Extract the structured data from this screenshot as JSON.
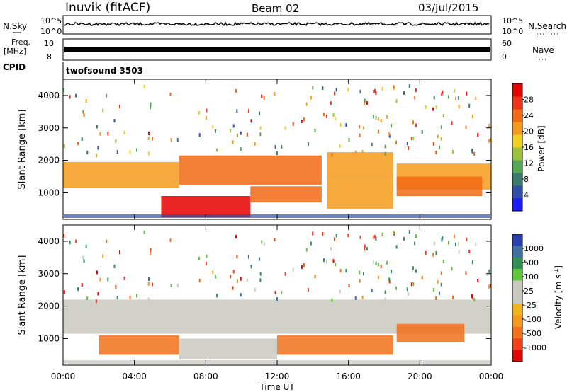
{
  "header": {
    "station": "Inuvik (fitACF)",
    "beam": "Beam 02",
    "date": "03/Jul/2015"
  },
  "aux_panels": {
    "nsky_label": "N.Sky",
    "nsky_ticks": [
      "10^5",
      "10^0"
    ],
    "nsearch_label": "N.Search",
    "nsearch_ticks": [
      "10^5",
      "10^0"
    ],
    "freq_label": "Freq.",
    "freq_unit": "[MHz]",
    "freq_ticks": [
      "10",
      "8"
    ],
    "nave_label": "Nave",
    "nave_ticks": [
      "60",
      "0"
    ],
    "cpid_label": "CPID",
    "cpid_value": "twofsound 3503"
  },
  "chart_data": [
    {
      "type": "heatmap",
      "title": "",
      "xlabel": "Time UT",
      "ylabel": "Slant Range [km]",
      "x_ticks": [
        "00:00",
        "04:00",
        "08:00",
        "12:00",
        "16:00",
        "20:00",
        "00:00"
      ],
      "y_ticks": [
        "1000",
        "2000",
        "3000",
        "4000"
      ],
      "xlim_hours": [
        0,
        24
      ],
      "ylim_km": [
        180,
        4500
      ],
      "colorbar": {
        "label": "Power [dB]",
        "range": [
          0,
          32
        ],
        "ticks": [
          "4",
          "8",
          "12",
          "16",
          "20",
          "24",
          "28"
        ],
        "colors": [
          "#1a1aff",
          "#2f4fa8",
          "#3a7a6a",
          "#54a855",
          "#9cc33c",
          "#f0d020",
          "#f59a1a",
          "#f26a14",
          "#ee3318",
          "#e60000"
        ]
      },
      "echo_bands": [
        {
          "start_h": 0.0,
          "end_h": 6.5,
          "range_km": [
            1150,
            1950
          ],
          "power_db": 22
        },
        {
          "start_h": 6.5,
          "end_h": 14.5,
          "range_km": [
            1250,
            2150
          ],
          "power_db": 24
        },
        {
          "start_h": 14.8,
          "end_h": 18.5,
          "range_km": [
            1400,
            2250
          ],
          "power_db": 21
        },
        {
          "start_h": 18.7,
          "end_h": 24.0,
          "range_km": [
            1100,
            1900
          ],
          "power_db": 22
        },
        {
          "start_h": 5.5,
          "end_h": 10.5,
          "range_km": [
            250,
            900
          ],
          "power_db": 30
        },
        {
          "start_h": 10.5,
          "end_h": 14.5,
          "range_km": [
            700,
            1200
          ],
          "power_db": 24
        },
        {
          "start_h": 14.8,
          "end_h": 18.5,
          "range_km": [
            500,
            1400
          ],
          "power_db": 22
        },
        {
          "start_h": 18.7,
          "end_h": 23.5,
          "range_km": [
            900,
            1500
          ],
          "power_db": 24
        }
      ]
    },
    {
      "type": "heatmap",
      "title": "",
      "xlabel": "Time UT",
      "ylabel": "Slant Range [km]",
      "x_ticks": [
        "00:00",
        "04:00",
        "08:00",
        "12:00",
        "16:00",
        "20:00",
        "00:00"
      ],
      "y_ticks": [
        "1000",
        "2000",
        "3000",
        "4000"
      ],
      "xlim_hours": [
        0,
        24
      ],
      "ylim_km": [
        180,
        4500
      ],
      "colorbar": {
        "label": "Velocity [m s^-1]",
        "ticks": [
          "1000",
          "500",
          "100",
          "25",
          "-25",
          "-100",
          "-500",
          "-1000"
        ],
        "colors": [
          "#2a3fae",
          "#3f6fa0",
          "#2f8f55",
          "#5cc83a",
          "#c9c9c0",
          "#c9c9c0",
          "#f2b51c",
          "#f59a1a",
          "#f2701a",
          "#ef4018",
          "#e60000"
        ]
      },
      "echo_bands": [
        {
          "start_h": 0.0,
          "end_h": 24.0,
          "range_km": [
            1150,
            2200
          ],
          "velocity_ms": 0
        },
        {
          "start_h": 2.0,
          "end_h": 6.5,
          "range_km": [
            500,
            1100
          ],
          "velocity_ms": -150
        },
        {
          "start_h": 6.5,
          "end_h": 12.0,
          "range_km": [
            350,
            1000
          ],
          "velocity_ms": 80
        },
        {
          "start_h": 12.0,
          "end_h": 18.5,
          "range_km": [
            500,
            1100
          ],
          "velocity_ms": -150
        },
        {
          "start_h": 18.7,
          "end_h": 22.5,
          "range_km": [
            900,
            1450
          ],
          "velocity_ms": -250
        }
      ]
    }
  ]
}
